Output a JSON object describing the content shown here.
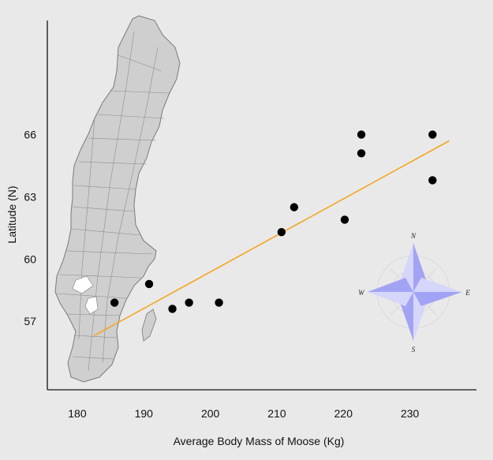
{
  "chart_data": {
    "type": "scatter",
    "xlabel": "Average Body Mass of Moose (Kg)",
    "ylabel": "Latitude (N)",
    "xlim": [
      175.5,
      240
    ],
    "ylim": [
      53.7,
      71.5
    ],
    "x_ticks": [
      180,
      190,
      200,
      210,
      220,
      230
    ],
    "y_ticks": [
      57,
      60,
      63,
      66
    ],
    "points": [
      {
        "x": 185.6,
        "y": 57.9
      },
      {
        "x": 190.8,
        "y": 58.8
      },
      {
        "x": 194.3,
        "y": 57.6
      },
      {
        "x": 196.8,
        "y": 57.9
      },
      {
        "x": 201.3,
        "y": 57.9
      },
      {
        "x": 210.7,
        "y": 61.3
      },
      {
        "x": 212.6,
        "y": 62.5
      },
      {
        "x": 220.2,
        "y": 61.9
      },
      {
        "x": 222.7,
        "y": 66.0
      },
      {
        "x": 222.7,
        "y": 65.1
      },
      {
        "x": 233.4,
        "y": 66.0
      },
      {
        "x": 233.4,
        "y": 63.8
      }
    ],
    "trendline": {
      "x": [
        182.5,
        235.9
      ],
      "y": [
        56.3,
        65.7
      ]
    },
    "grid": false,
    "colors": {
      "points": "#000000",
      "trendline": "#f5a623",
      "map_fill": "#cfcfcf",
      "map_stroke": "#7a7a7a",
      "compass": "#a3a3f5"
    }
  },
  "compass": {
    "n": "N",
    "s": "S",
    "e": "E",
    "w": "W"
  }
}
